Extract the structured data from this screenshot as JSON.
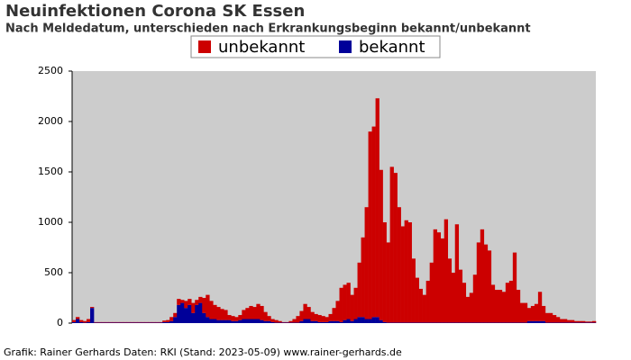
{
  "chart_data": {
    "type": "bar",
    "stacked": true,
    "title": "Neuinfektionen Corona SK Essen",
    "subtitle": "Nach Meldedatum, unterschieden nach Erkrankungsbeginn bekannt/unbekannt",
    "footer": "Grafik: Rainer Gerhards Daten: RKI (Stand: 2023-05-09) www.rainer-gerhards.de",
    "ylim": [
      0,
      2500
    ],
    "yticks": [
      0,
      500,
      1000,
      1500,
      2000,
      2500
    ],
    "series": [
      {
        "name": "unbekannt",
        "color": "#cc0000",
        "values": [
          20,
          20,
          20,
          15,
          30,
          10,
          5,
          5,
          5,
          5,
          5,
          5,
          5,
          5,
          5,
          5,
          5,
          5,
          5,
          5,
          5,
          5,
          5,
          5,
          5,
          15,
          20,
          40,
          40,
          60,
          30,
          70,
          60,
          100,
          50,
          60,
          150,
          220,
          180,
          140,
          130,
          110,
          100,
          50,
          50,
          40,
          50,
          90,
          110,
          130,
          120,
          150,
          140,
          90,
          50,
          30,
          25,
          15,
          5,
          5,
          15,
          35,
          65,
          100,
          150,
          120,
          90,
          70,
          70,
          60,
          50,
          70,
          130,
          200,
          340,
          350,
          360,
          260,
          310,
          540,
          790,
          1110,
          1860,
          1890,
          2170,
          1490,
          990,
          795,
          1545,
          1485,
          1145,
          955,
          1015,
          995,
          635,
          445,
          335,
          275,
          415,
          595,
          925,
          895,
          835,
          1025,
          635,
          495,
          975,
          525,
          395,
          255,
          295,
          475,
          795,
          925,
          775,
          715,
          375,
          325,
          325,
          305,
          395,
          415,
          695,
          325,
          195,
          195,
          130,
          150,
          170,
          290,
          150,
          95,
          95,
          75,
          55,
          35,
          35,
          25,
          25,
          15,
          15,
          15,
          10,
          10,
          15
        ]
      },
      {
        "name": "bekannt",
        "color": "#000099",
        "values": [
          10,
          40,
          10,
          5,
          10,
          150,
          5,
          5,
          5,
          5,
          5,
          5,
          5,
          5,
          5,
          5,
          5,
          5,
          5,
          5,
          5,
          5,
          5,
          5,
          5,
          10,
          10,
          20,
          60,
          180,
          200,
          150,
          180,
          100,
          180,
          200,
          100,
          60,
          40,
          40,
          30,
          30,
          30,
          30,
          20,
          20,
          30,
          40,
          40,
          40,
          40,
          40,
          30,
          20,
          20,
          10,
          5,
          5,
          5,
          5,
          5,
          5,
          5,
          20,
          40,
          40,
          20,
          20,
          10,
          10,
          10,
          20,
          20,
          20,
          10,
          30,
          40,
          20,
          40,
          60,
          60,
          40,
          40,
          60,
          60,
          30,
          10,
          5,
          5,
          5,
          5,
          5,
          5,
          5,
          5,
          5,
          5,
          5,
          5,
          5,
          5,
          5,
          5,
          5,
          5,
          5,
          5,
          5,
          5,
          5,
          5,
          5,
          5,
          5,
          5,
          5,
          5,
          5,
          5,
          5,
          5,
          5,
          5,
          5,
          5,
          5,
          20,
          20,
          20,
          20,
          20,
          5,
          5,
          5,
          5,
          5,
          5,
          5,
          5,
          5,
          5,
          5,
          5,
          5,
          5
        ]
      }
    ]
  }
}
